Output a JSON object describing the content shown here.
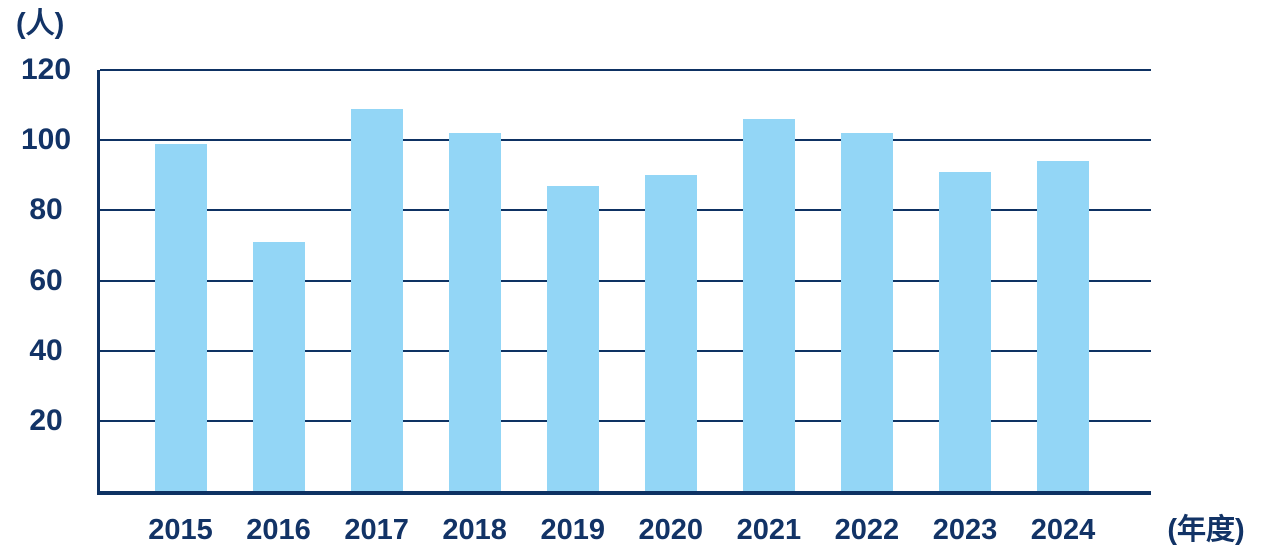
{
  "chart_data": {
    "type": "bar",
    "title": "",
    "categories": [
      "2015",
      "2016",
      "2017",
      "2018",
      "2019",
      "2020",
      "2021",
      "2022",
      "2023",
      "2024"
    ],
    "values": [
      99,
      71,
      109,
      102,
      87,
      90,
      106,
      102,
      91,
      94
    ],
    "xlabel": "(年度)",
    "ylabel": "(人)",
    "ylim": [
      0,
      120
    ],
    "yticks": [
      20,
      40,
      60,
      80,
      100,
      120
    ],
    "grid": true,
    "legend_position": "none",
    "bar_color": "#93D6F6",
    "axis_color": "#0E3263",
    "text_color": "#123366"
  }
}
